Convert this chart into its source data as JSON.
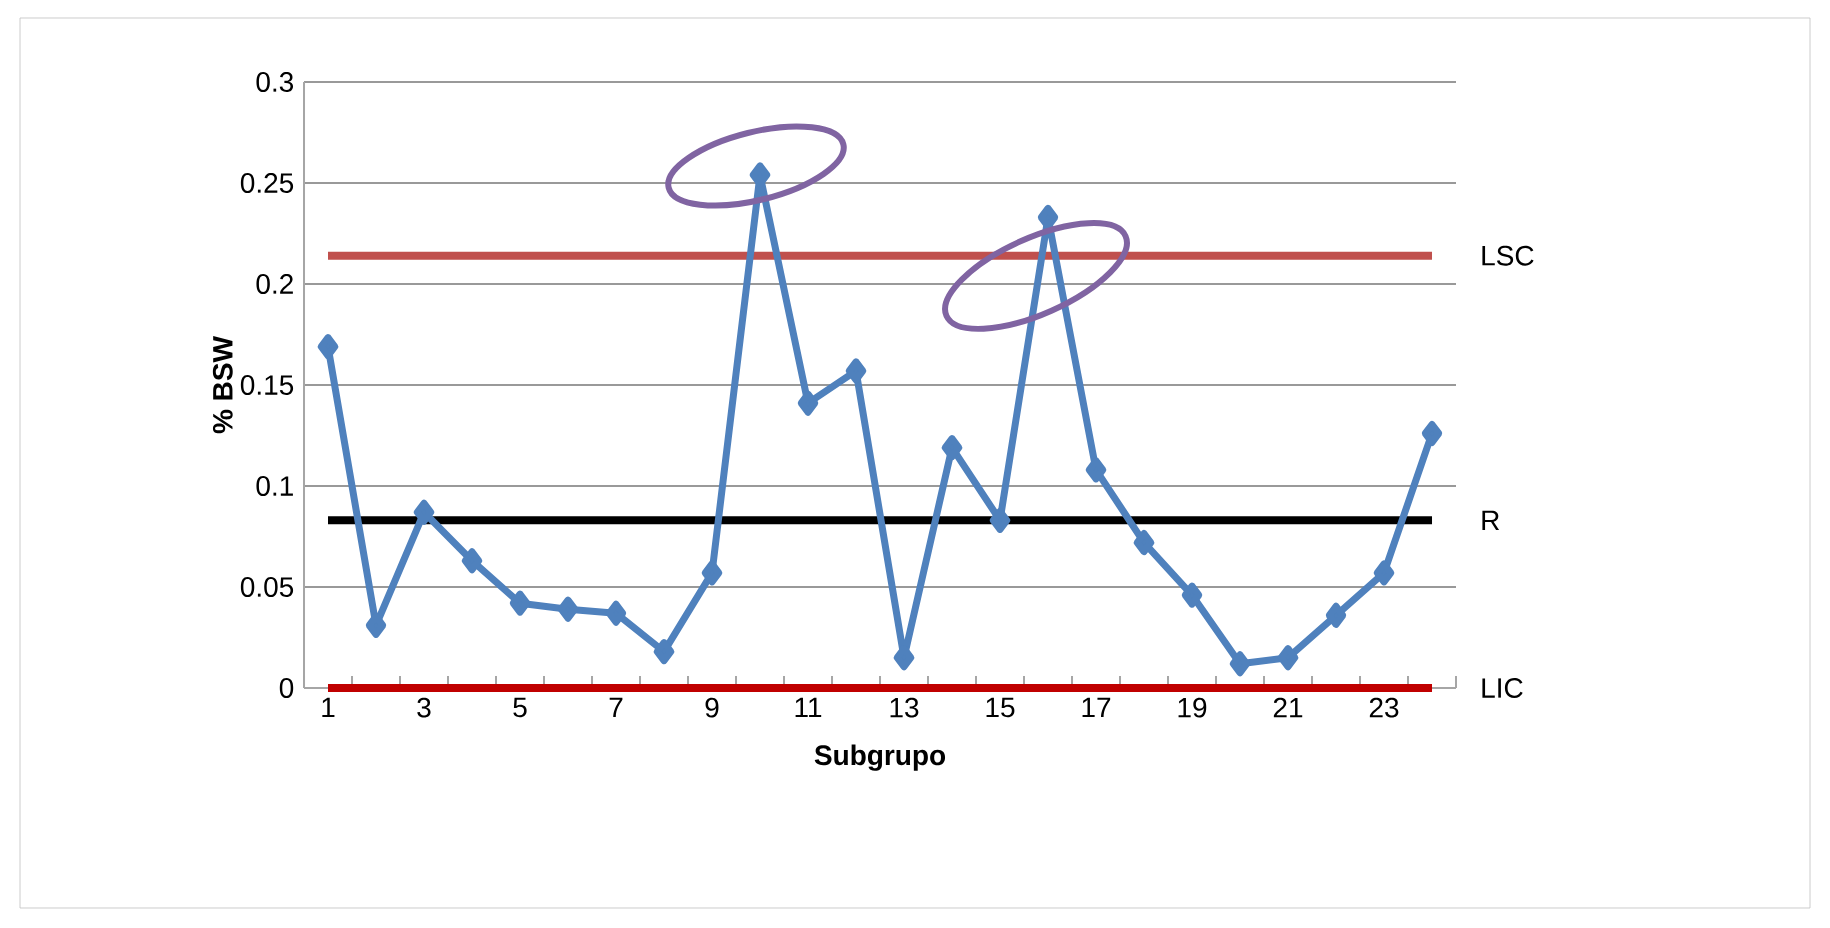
{
  "chart_data": {
    "type": "line",
    "xlabel": "Subgrupo",
    "ylabel": "% BSW",
    "categories": [
      "1",
      null,
      "3",
      null,
      "5",
      null,
      "7",
      null,
      "9",
      null,
      "11",
      null,
      "13",
      null,
      "15",
      null,
      "17",
      null,
      "19",
      null,
      "21",
      null,
      "23",
      null
    ],
    "series": [
      {
        "color": "#4f81bd",
        "values": [
          0.169,
          0.031,
          0.087,
          0.063,
          0.042,
          0.039,
          0.037,
          0.018,
          0.057,
          0.254,
          0.141,
          0.157,
          0.015,
          0.119,
          0.083,
          0.233,
          0.108,
          0.072,
          0.046,
          0.012,
          0.015,
          0.036,
          0.057,
          0.126
        ]
      }
    ],
    "ylim": [
      0,
      0.3
    ],
    "yticks": [
      0,
      0.05,
      0.1,
      0.15,
      0.2,
      0.25,
      0.3
    ],
    "grid": "y",
    "marker": "diamond",
    "line_style": "solid",
    "ref_lines": [
      {
        "axis": "y",
        "value": 0.214,
        "label": "LSC",
        "color": "#c0504d"
      },
      {
        "axis": "y",
        "value": 0.083,
        "label": "R",
        "color": "#000000"
      },
      {
        "axis": "y",
        "value": 0,
        "label": "LIC",
        "color": "#c00000"
      }
    ]
  }
}
